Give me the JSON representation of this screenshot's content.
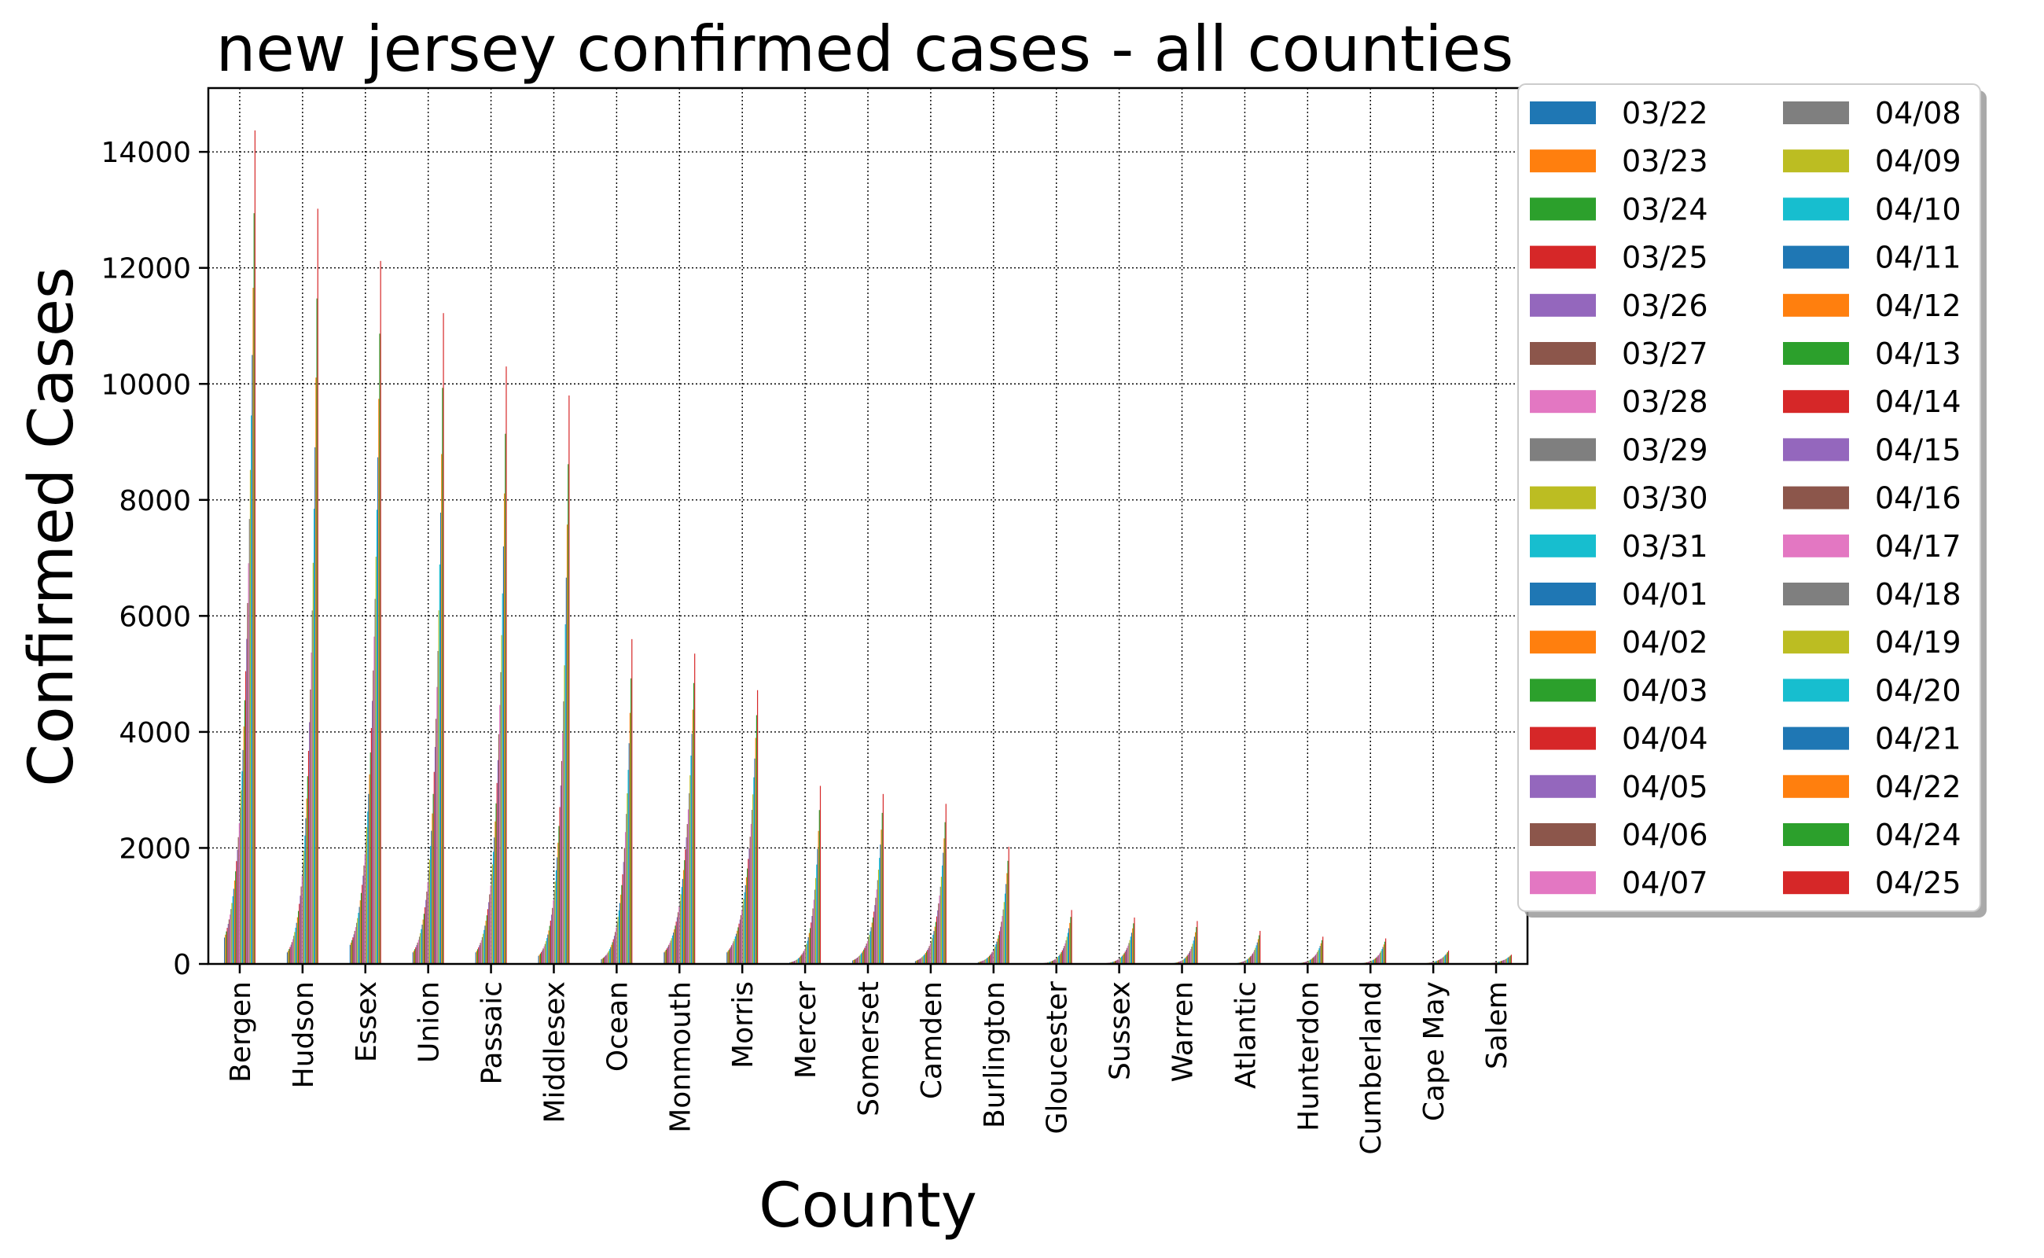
{
  "chart_data": {
    "type": "bar",
    "title": "new jersey confirmed cases - all counties",
    "xlabel": "County",
    "ylabel": "Confirmed Cases",
    "ylim": [
      0,
      15100
    ],
    "yticks": [
      0,
      2000,
      4000,
      6000,
      8000,
      10000,
      12000,
      14000
    ],
    "grid": true,
    "legend_position": "outside-right",
    "legend_columns": 2,
    "categories": [
      "Bergen",
      "Hudson",
      "Essex",
      "Union",
      "Passaic",
      "Middlesex",
      "Ocean",
      "Monmouth",
      "Morris",
      "Mercer",
      "Somerset",
      "Camden",
      "Burlington",
      "Gloucester",
      "Sussex",
      "Warren",
      "Atlantic",
      "Hunterdon",
      "Cumberland",
      "Cape May",
      "Salem"
    ],
    "dates": [
      "03/22",
      "03/23",
      "03/24",
      "03/25",
      "03/26",
      "03/27",
      "03/28",
      "03/29",
      "03/30",
      "03/31",
      "04/01",
      "04/02",
      "04/03",
      "04/04",
      "04/05",
      "04/06",
      "04/07",
      "04/08",
      "04/09",
      "04/10",
      "04/11",
      "04/12",
      "04/13",
      "04/14",
      "04/15",
      "04/16",
      "04/17",
      "04/18",
      "04/19",
      "04/20",
      "04/21",
      "04/22",
      "04/24",
      "04/25"
    ],
    "series_colors": [
      "#1f77b4",
      "#ff7f0e",
      "#2ca02c",
      "#d62728",
      "#9467bd",
      "#8c564b",
      "#e377c2",
      "#7f7f7f",
      "#bcbd22",
      "#17becf"
    ],
    "start_values": [
      455,
      200,
      330,
      200,
      200,
      140,
      80,
      200,
      200,
      25,
      60,
      50,
      30,
      10,
      10,
      5,
      5,
      5,
      5,
      5,
      5
    ],
    "final_values": [
      14370,
      13020,
      12120,
      11220,
      10300,
      9800,
      5600,
      5350,
      4720,
      3070,
      2930,
      2760,
      2020,
      930,
      800,
      740,
      570,
      470,
      440,
      230,
      160
    ],
    "series": [
      {
        "name": "03/22",
        "values": [
          455,
          200,
          330,
          200,
          200,
          140,
          80,
          200,
          200,
          25,
          60,
          50,
          30,
          10,
          10,
          5,
          5,
          5,
          5,
          5,
          5
        ]
      },
      {
        "name": "04/25",
        "values": [
          14370,
          13020,
          12120,
          11220,
          10300,
          9800,
          5600,
          5350,
          4720,
          3070,
          2930,
          2760,
          2020,
          930,
          800,
          740,
          570,
          470,
          440,
          230,
          160
        ]
      }
    ]
  }
}
